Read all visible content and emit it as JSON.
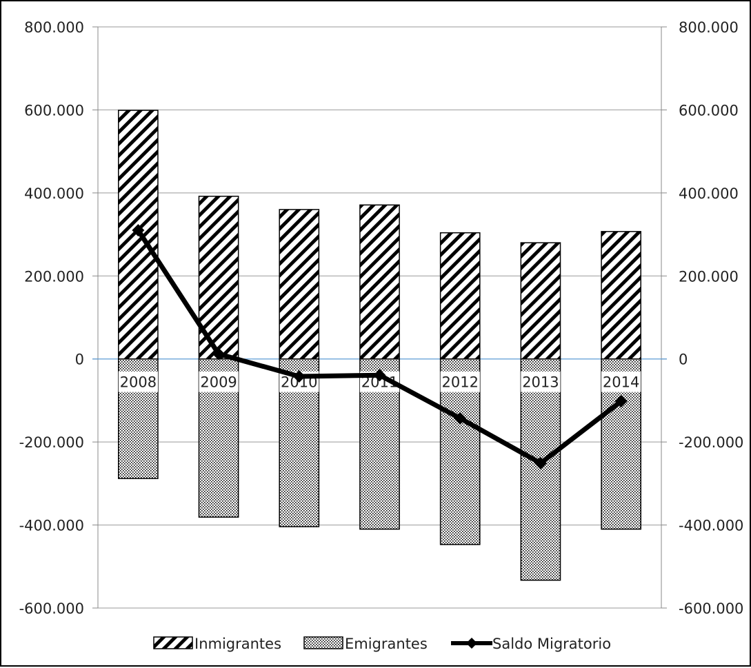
{
  "chart_data": {
    "type": "bar",
    "categories": [
      "2008",
      "2009",
      "2010",
      "2011",
      "2012",
      "2013",
      "2014"
    ],
    "series": [
      {
        "name": "Inmigrantes",
        "kind": "bar",
        "fill": "diagonal-hatch",
        "values": [
          599000,
          392000,
          360000,
          371000,
          304000,
          280000,
          307000
        ]
      },
      {
        "name": "Emigrantes",
        "kind": "bar",
        "fill": "dotted",
        "values": [
          -288000,
          -381000,
          -404000,
          -410000,
          -447000,
          -533000,
          -410000
        ]
      },
      {
        "name": "Saldo Migratorio",
        "kind": "line",
        "marker": "diamond",
        "color": "#000000",
        "values": [
          310000,
          12000,
          -42000,
          -39000,
          -143000,
          -251000,
          -102000
        ]
      }
    ],
    "y_ticks": [
      "800.000",
      "600.000",
      "400.000",
      "200.000",
      "0",
      "-200.000",
      "-400.000",
      "-600.000"
    ],
    "y_tick_values": [
      800000,
      600000,
      400000,
      200000,
      0,
      -200000,
      -400000,
      -600000
    ],
    "ylim": [
      -600000,
      800000
    ],
    "y2lim": [
      -600000,
      800000
    ],
    "grid": true,
    "legend_position": "bottom",
    "zero_line_color": "#5b9bd5"
  }
}
